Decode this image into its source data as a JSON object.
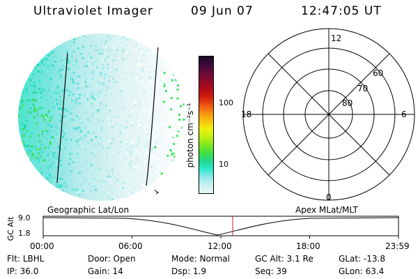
{
  "header": {
    "instrument": "Ultraviolet Imager",
    "date": "09 Jun 07",
    "time": "12:47:05 UT"
  },
  "colorbar": {
    "unit_label": "photon cm⁻²s⁻¹",
    "ticks": [
      "100",
      "10"
    ],
    "colors": [
      "#1a0a26",
      "#3b0a3e",
      "#6a0a3a",
      "#8a0a2a",
      "#b00a1a",
      "#d01a10",
      "#ee5010",
      "#f89010",
      "#f8c010",
      "#f0f010",
      "#c0f010",
      "#80e820",
      "#40e040",
      "#20d890",
      "#30e8d0",
      "#90e8e8",
      "#c8f0f0",
      "#e8f8f8"
    ]
  },
  "polar": {
    "mlt_labels": {
      "top": "12",
      "right": "6",
      "bottom": "0",
      "left": "18"
    },
    "lat_labels": [
      "60",
      "70",
      "80"
    ]
  },
  "timeline": {
    "y_axis_label": "GC Alt",
    "y_ticks": [
      "9.0",
      "1.8"
    ],
    "left_label": "Geographic Lat/Lon",
    "right_label": "Apex  MLat/MLT",
    "x_ticks": [
      "00:00",
      "06:00",
      "12:00",
      "18:00",
      "23:59"
    ],
    "current_fraction": 0.5333
  },
  "status": {
    "row1": [
      {
        "label": "Flt:",
        "value": "LBHL"
      },
      {
        "label": "Door:",
        "value": "Open"
      },
      {
        "label": "Mode:",
        "value": "Normal"
      },
      {
        "label": "GC Alt:",
        "value": "3.1 Re"
      },
      {
        "label": "GLat:",
        "value": "-13.8"
      }
    ],
    "row2": [
      {
        "label": "IP:",
        "value": "36.0"
      },
      {
        "label": "Gain:",
        "value": "14"
      },
      {
        "label": "Dsp:",
        "value": "1.9"
      },
      {
        "label": "Seq:",
        "value": "39"
      },
      {
        "label": "GLon:",
        "value": "63.4"
      }
    ]
  }
}
